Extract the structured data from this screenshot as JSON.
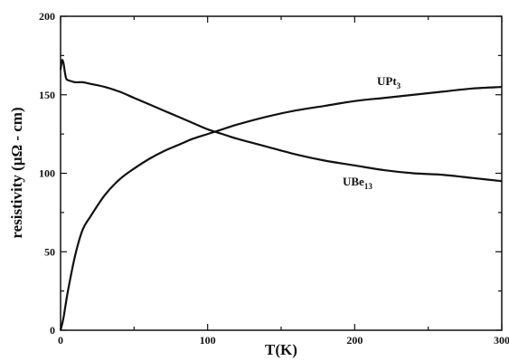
{
  "chart_data": {
    "type": "line",
    "title": "",
    "xlabel": "T(K)",
    "ylabel": "resistivity (μΩ - cm)",
    "xlim": [
      0,
      300
    ],
    "ylim": [
      0,
      200
    ],
    "xticks": [
      0,
      100,
      200,
      300
    ],
    "yticks": [
      0,
      50,
      100,
      150,
      200
    ],
    "grid": false,
    "series": [
      {
        "name": "UPt3",
        "label_base": "UPt",
        "label_sub": "3",
        "x": [
          0,
          2,
          5,
          10,
          15,
          20,
          30,
          40,
          50,
          60,
          70,
          80,
          90,
          100,
          110,
          120,
          140,
          160,
          180,
          200,
          220,
          240,
          260,
          280,
          300
        ],
        "y": [
          0,
          8,
          25,
          48,
          64,
          72,
          86,
          96,
          103,
          109,
          114,
          118,
          122,
          125,
          128,
          131,
          136,
          140,
          143,
          146,
          148,
          150,
          152,
          154,
          155
        ],
        "color": "#111111"
      },
      {
        "name": "UBe13",
        "label_base": "UBe",
        "label_sub": "13",
        "x": [
          0,
          1,
          2,
          3,
          4,
          6,
          10,
          15,
          20,
          30,
          40,
          50,
          60,
          70,
          80,
          90,
          100,
          110,
          120,
          140,
          160,
          180,
          200,
          220,
          240,
          260,
          280,
          300
        ],
        "y": [
          166,
          172,
          170,
          164,
          160,
          159,
          158,
          158,
          157,
          155,
          152,
          148,
          144,
          140,
          136,
          132,
          128,
          125,
          122,
          117,
          112,
          108,
          105,
          102,
          100,
          99,
          97,
          95
        ],
        "color": "#111111"
      }
    ]
  }
}
